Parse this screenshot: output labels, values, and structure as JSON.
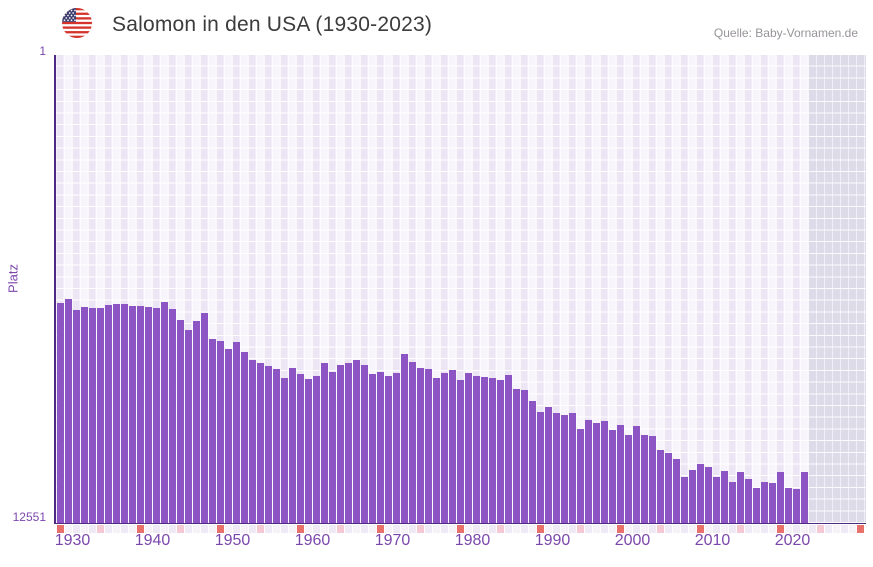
{
  "header": {
    "title": "Salomon in den USA (1930-2023)",
    "flag_icon": "us-flag-icon",
    "source": "Quelle: Baby-Vornamen.de"
  },
  "y_axis": {
    "top_label": "1",
    "bottom_label": "12551",
    "title": "Platz"
  },
  "chart_data": {
    "type": "bar",
    "title": "Salomon in den USA (1930-2023)",
    "ylabel": "Platz",
    "xlabel": "",
    "y_inverted": true,
    "ylim": [
      1,
      12551
    ],
    "x_domain": [
      1930,
      2030
    ],
    "no_data_from": 2024,
    "x_ticks": [
      "1930",
      "1940",
      "1950",
      "1960",
      "1970",
      "1980",
      "1990",
      "2000",
      "2010",
      "2020"
    ],
    "legend": "none",
    "grid": "checkered",
    "years": [
      1930,
      1931,
      1932,
      1933,
      1934,
      1935,
      1936,
      1937,
      1938,
      1939,
      1940,
      1941,
      1942,
      1943,
      1944,
      1945,
      1946,
      1947,
      1948,
      1949,
      1950,
      1951,
      1952,
      1953,
      1954,
      1955,
      1956,
      1957,
      1958,
      1959,
      1960,
      1961,
      1962,
      1963,
      1964,
      1965,
      1966,
      1967,
      1968,
      1969,
      1970,
      1971,
      1972,
      1973,
      1974,
      1975,
      1976,
      1977,
      1978,
      1979,
      1980,
      1981,
      1982,
      1983,
      1984,
      1985,
      1986,
      1987,
      1988,
      1989,
      1990,
      1991,
      1992,
      1993,
      1994,
      1995,
      1996,
      1997,
      1998,
      1999,
      2000,
      2001,
      2002,
      2003,
      2004,
      2005,
      2006,
      2007,
      2008,
      2009,
      2010,
      2011,
      2012,
      2013,
      2014,
      2015,
      2016,
      2017,
      2018,
      2019,
      2020,
      2021,
      2022,
      2023
    ],
    "ranks": [
      6644,
      6553,
      6839,
      6751,
      6778,
      6794,
      6705,
      6687,
      6679,
      6724,
      6732,
      6751,
      6778,
      6617,
      6821,
      7107,
      7376,
      7126,
      6911,
      7625,
      7671,
      7885,
      7698,
      7966,
      8180,
      8269,
      8341,
      8430,
      8671,
      8403,
      8556,
      8698,
      8609,
      8269,
      8502,
      8314,
      8252,
      8180,
      8314,
      8564,
      8494,
      8609,
      8537,
      8028,
      8225,
      8386,
      8430,
      8655,
      8521,
      8448,
      8717,
      8521,
      8609,
      8628,
      8655,
      8717,
      8583,
      8966,
      8985,
      9280,
      9567,
      9433,
      9594,
      9660,
      9590,
      10031,
      9789,
      9862,
      9816,
      10058,
      9910,
      10192,
      9950,
      10192,
      10219,
      10594,
      10675,
      10836,
      11319,
      11131,
      10970,
      11050,
      11319,
      11158,
      11453,
      11184,
      11372,
      11614,
      11453,
      11480,
      11184,
      11614,
      11640,
      11184
    ],
    "colors": {
      "bar": "#8d55c4",
      "axis": "#4e2a82",
      "tick_text": "#7c47ad",
      "strip_decade": "#e8716c",
      "strip_half_decade": "#f4c9d3",
      "strip_even": "#efe9f6",
      "strip_odd": "#f7f2f8",
      "bg_col_even": "#ebe5f4",
      "bg_col_odd": "#f7f4fb",
      "future_cell": "#dedbe9"
    }
  }
}
